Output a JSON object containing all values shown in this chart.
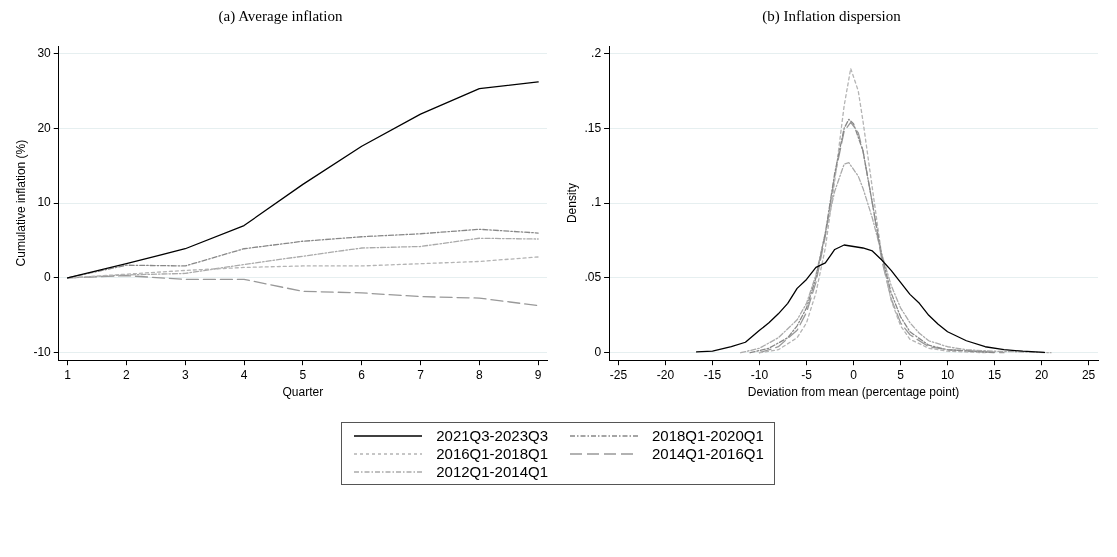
{
  "chart_data": [
    {
      "type": "line",
      "title": "(a) Average inflation",
      "xlabel": "Quarter",
      "ylabel": "Cumulative inflation (%)",
      "xlim": [
        0.85,
        9.15
      ],
      "xticks": [
        1,
        2,
        3,
        4,
        5,
        6,
        7,
        8,
        9
      ],
      "ylim": [
        -11,
        31
      ],
      "yticks": [
        -10,
        0,
        10,
        20,
        30
      ],
      "grid": "y",
      "legend": "bottom",
      "marker": "none",
      "x": [
        1,
        2,
        3,
        4,
        5,
        6,
        7,
        8,
        9
      ],
      "series": [
        {
          "name": "2021Q3-2023Q3",
          "color": "#000000",
          "line_style": "solid",
          "values": [
            0,
            1.9,
            3.9,
            7.0,
            12.5,
            17.6,
            21.9,
            25.3,
            26.2
          ]
        },
        {
          "name": "2018Q1-2020Q1",
          "color": "#888888",
          "line_style": "dashdot",
          "values": [
            0,
            1.7,
            1.6,
            3.9,
            4.9,
            5.5,
            5.9,
            6.5,
            6.0
          ]
        },
        {
          "name": "2016Q1-2018Q1",
          "color": "#b4b4b4",
          "line_style": "dotted",
          "values": [
            0,
            0.5,
            1.0,
            1.4,
            1.6,
            1.6,
            1.9,
            2.2,
            2.8
          ]
        },
        {
          "name": "2014Q1-2016Q1",
          "color": "#999999",
          "line_style": "dashed",
          "values": [
            0,
            0.3,
            -0.2,
            -0.2,
            -1.8,
            -2.0,
            -2.5,
            -2.7,
            -3.7
          ]
        },
        {
          "name": "2012Q1-2014Q1",
          "color": "#aaaaaa",
          "line_style": "dashdot",
          "values": [
            0,
            0.4,
            0.6,
            1.8,
            2.9,
            4.0,
            4.2,
            5.3,
            5.2
          ]
        }
      ]
    },
    {
      "type": "line",
      "title": "(b) Inflation dispersion",
      "xlabel": "Deviation from mean (percentage point)",
      "ylabel": "Density",
      "xlim": [
        -26,
        26
      ],
      "xticks": [
        -25,
        -20,
        -15,
        -10,
        -5,
        0,
        5,
        10,
        15,
        20,
        25
      ],
      "ylim": [
        -0.005,
        0.205
      ],
      "yticks": [
        0,
        {
          "value": 0.05,
          "label": ".05"
        },
        {
          "value": 0.1,
          "label": ".1"
        },
        {
          "value": 0.15,
          "label": ".15"
        },
        {
          "value": 0.2,
          "label": ".2"
        }
      ],
      "grid": "y",
      "marker": "none",
      "series": [
        {
          "color": "#000000",
          "line_style": "solid",
          "x": [
            -16.7,
            -15,
            -13,
            -11.5,
            -10,
            -9,
            -8,
            -7,
            -6,
            -5,
            -4,
            -3,
            -2,
            -1,
            0,
            1,
            2,
            3,
            4,
            5,
            6,
            7,
            8,
            9,
            10,
            12,
            14,
            16,
            18,
            20.3
          ],
          "values": [
            0.0005,
            0.001,
            0.004,
            0.007,
            0.015,
            0.02,
            0.026,
            0.033,
            0.043,
            0.049,
            0.057,
            0.06,
            0.069,
            0.072,
            0.071,
            0.07,
            0.068,
            0.062,
            0.055,
            0.047,
            0.039,
            0.033,
            0.025,
            0.019,
            0.014,
            0.008,
            0.004,
            0.002,
            0.001,
            0.0002
          ]
        },
        {
          "color": "#888888",
          "line_style": "dashdot",
          "x": [
            -11,
            -9,
            -7,
            -6,
            -5,
            -4,
            -3,
            -2,
            -1,
            -0.5,
            0,
            1,
            2,
            3,
            4,
            5,
            6,
            8,
            10,
            15
          ],
          "values": [
            0,
            0.003,
            0.01,
            0.018,
            0.03,
            0.05,
            0.08,
            0.12,
            0.15,
            0.156,
            0.153,
            0.135,
            0.1,
            0.065,
            0.04,
            0.024,
            0.014,
            0.005,
            0.002,
            0
          ]
        },
        {
          "color": "#b4b4b4",
          "line_style": "dotted",
          "x": [
            -10,
            -8,
            -6,
            -5,
            -4,
            -3,
            -2,
            -1,
            -0.3,
            0.5,
            1,
            2,
            3,
            4,
            5,
            6,
            8,
            10,
            14
          ],
          "values": [
            0,
            0.002,
            0.01,
            0.02,
            0.04,
            0.07,
            0.115,
            0.165,
            0.19,
            0.175,
            0.155,
            0.11,
            0.065,
            0.035,
            0.018,
            0.009,
            0.003,
            0.001,
            0
          ]
        },
        {
          "color": "#999999",
          "line_style": "dashed",
          "x": [
            -10,
            -8,
            -6,
            -5,
            -4,
            -3,
            -2,
            -1,
            -0.3,
            0.5,
            1,
            2,
            3,
            4,
            5,
            6,
            8,
            10,
            16
          ],
          "values": [
            0,
            0.004,
            0.015,
            0.027,
            0.047,
            0.078,
            0.118,
            0.148,
            0.154,
            0.147,
            0.135,
            0.1,
            0.062,
            0.036,
            0.02,
            0.012,
            0.004,
            0.002,
            0
          ]
        },
        {
          "color": "#aaaaaa",
          "line_style": "dashdot",
          "x": [
            -12,
            -10,
            -8,
            -6,
            -5,
            -4,
            -3,
            -2,
            -1,
            -0.5,
            0.5,
            1,
            2,
            3,
            4,
            5,
            6,
            7,
            8,
            10,
            12,
            15,
            21
          ],
          "values": [
            0,
            0.003,
            0.01,
            0.022,
            0.033,
            0.052,
            0.08,
            0.108,
            0.126,
            0.127,
            0.118,
            0.11,
            0.09,
            0.066,
            0.045,
            0.03,
            0.02,
            0.013,
            0.008,
            0.004,
            0.002,
            0.001,
            0
          ]
        }
      ]
    }
  ]
}
